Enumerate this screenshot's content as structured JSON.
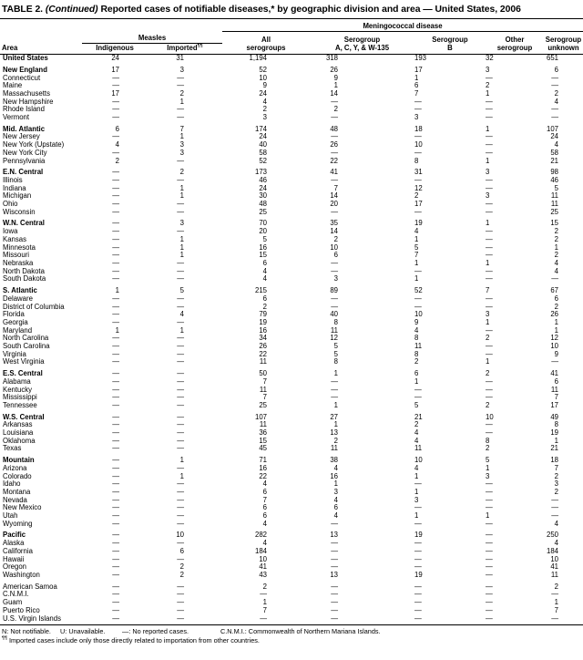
{
  "title": {
    "prefix": "TABLE 2. ",
    "continued": "(Continued)",
    "rest": " Reported cases of notifiable diseases,* by geographic division and area — United States, 2006"
  },
  "table": {
    "area_header": "Area",
    "measles_group_label": "Measles",
    "mening_group_label": "Meningococcal disease",
    "measles_columns": [
      {
        "text": "Indigenous",
        "sup": ""
      },
      {
        "text": "Imported",
        "sup": "¶¶"
      }
    ],
    "mening_columns": [
      {
        "l1": "All",
        "l2": "serogroups"
      },
      {
        "l1": "Serogroup",
        "l2": "A, C, Y, & W-135"
      },
      {
        "l1": "Serogroup",
        "l2": "B"
      },
      {
        "l1": "Other",
        "l2": "serogroup"
      },
      {
        "l1": "Serogroup",
        "l2": "unknown"
      }
    ],
    "groups": [
      {
        "rows": [
          {
            "area": "United States",
            "bold": true,
            "values": [
              "24",
              "31",
              "1,194",
              "318",
              "193",
              "32",
              "651"
            ]
          }
        ]
      },
      {
        "rows": [
          {
            "area": "New England",
            "bold": true,
            "values": [
              "17",
              "3",
              "52",
              "26",
              "17",
              "3",
              "6"
            ]
          },
          {
            "area": "Connecticut",
            "bold": false,
            "values": [
              "—",
              "—",
              "10",
              "9",
              "1",
              "—",
              "—"
            ]
          },
          {
            "area": "Maine",
            "bold": false,
            "values": [
              "—",
              "—",
              "9",
              "1",
              "6",
              "2",
              "—"
            ]
          },
          {
            "area": "Massachusetts",
            "bold": false,
            "values": [
              "17",
              "2",
              "24",
              "14",
              "7",
              "1",
              "2"
            ]
          },
          {
            "area": "New Hampshire",
            "bold": false,
            "values": [
              "—",
              "1",
              "4",
              "—",
              "—",
              "—",
              "4"
            ]
          },
          {
            "area": "Rhode Island",
            "bold": false,
            "values": [
              "—",
              "—",
              "2",
              "2",
              "—",
              "—",
              "—"
            ]
          },
          {
            "area": "Vermont",
            "bold": false,
            "values": [
              "—",
              "—",
              "3",
              "—",
              "3",
              "—",
              "—"
            ]
          }
        ]
      },
      {
        "rows": [
          {
            "area": "Mid. Atlantic",
            "bold": true,
            "values": [
              "6",
              "7",
              "174",
              "48",
              "18",
              "1",
              "107"
            ]
          },
          {
            "area": "New Jersey",
            "bold": false,
            "values": [
              "—",
              "1",
              "24",
              "—",
              "—",
              "—",
              "24"
            ]
          },
          {
            "area": "New York (Upstate)",
            "bold": false,
            "values": [
              "4",
              "3",
              "40",
              "26",
              "10",
              "—",
              "4"
            ]
          },
          {
            "area": "New York City",
            "bold": false,
            "values": [
              "—",
              "3",
              "58",
              "—",
              "—",
              "—",
              "58"
            ]
          },
          {
            "area": "Pennsylvania",
            "bold": false,
            "values": [
              "2",
              "—",
              "52",
              "22",
              "8",
              "1",
              "21"
            ]
          }
        ]
      },
      {
        "rows": [
          {
            "area": "E.N. Central",
            "bold": true,
            "values": [
              "—",
              "2",
              "173",
              "41",
              "31",
              "3",
              "98"
            ]
          },
          {
            "area": "Illinois",
            "bold": false,
            "values": [
              "—",
              "—",
              "46",
              "—",
              "—",
              "—",
              "46"
            ]
          },
          {
            "area": "Indiana",
            "bold": false,
            "values": [
              "—",
              "1",
              "24",
              "7",
              "12",
              "—",
              "5"
            ]
          },
          {
            "area": "Michigan",
            "bold": false,
            "values": [
              "—",
              "1",
              "30",
              "14",
              "2",
              "3",
              "11"
            ]
          },
          {
            "area": "Ohio",
            "bold": false,
            "values": [
              "—",
              "—",
              "48",
              "20",
              "17",
              "—",
              "11"
            ]
          },
          {
            "area": "Wisconsin",
            "bold": false,
            "values": [
              "—",
              "—",
              "25",
              "—",
              "—",
              "—",
              "25"
            ]
          }
        ]
      },
      {
        "rows": [
          {
            "area": "W.N. Central",
            "bold": true,
            "values": [
              "—",
              "3",
              "70",
              "35",
              "19",
              "1",
              "15"
            ]
          },
          {
            "area": "Iowa",
            "bold": false,
            "values": [
              "—",
              "—",
              "20",
              "14",
              "4",
              "—",
              "2"
            ]
          },
          {
            "area": "Kansas",
            "bold": false,
            "values": [
              "—",
              "1",
              "5",
              "2",
              "1",
              "—",
              "2"
            ]
          },
          {
            "area": "Minnesota",
            "bold": false,
            "values": [
              "—",
              "1",
              "16",
              "10",
              "5",
              "—",
              "1"
            ]
          },
          {
            "area": "Missouri",
            "bold": false,
            "values": [
              "—",
              "1",
              "15",
              "6",
              "7",
              "—",
              "2"
            ]
          },
          {
            "area": "Nebraska",
            "bold": false,
            "values": [
              "—",
              "—",
              "6",
              "—",
              "1",
              "1",
              "4"
            ]
          },
          {
            "area": "North Dakota",
            "bold": false,
            "values": [
              "—",
              "—",
              "4",
              "—",
              "—",
              "—",
              "4"
            ]
          },
          {
            "area": "South Dakota",
            "bold": false,
            "values": [
              "—",
              "—",
              "4",
              "3",
              "1",
              "—",
              "—"
            ]
          }
        ]
      },
      {
        "rows": [
          {
            "area": "S. Atlantic",
            "bold": true,
            "values": [
              "1",
              "5",
              "215",
              "89",
              "52",
              "7",
              "67"
            ]
          },
          {
            "area": "Delaware",
            "bold": false,
            "values": [
              "—",
              "—",
              "6",
              "—",
              "—",
              "—",
              "6"
            ]
          },
          {
            "area": "District of Columbia",
            "bold": false,
            "values": [
              "—",
              "—",
              "2",
              "—",
              "—",
              "—",
              "2"
            ]
          },
          {
            "area": "Florida",
            "bold": false,
            "values": [
              "—",
              "4",
              "79",
              "40",
              "10",
              "3",
              "26"
            ]
          },
          {
            "area": "Georgia",
            "bold": false,
            "values": [
              "—",
              "—",
              "19",
              "8",
              "9",
              "1",
              "1"
            ]
          },
          {
            "area": "Maryland",
            "bold": false,
            "values": [
              "1",
              "1",
              "16",
              "11",
              "4",
              "—",
              "1"
            ]
          },
          {
            "area": "North Carolina",
            "bold": false,
            "values": [
              "—",
              "—",
              "34",
              "12",
              "8",
              "2",
              "12"
            ]
          },
          {
            "area": "South Carolina",
            "bold": false,
            "values": [
              "—",
              "—",
              "26",
              "5",
              "11",
              "—",
              "10"
            ]
          },
          {
            "area": "Virginia",
            "bold": false,
            "values": [
              "—",
              "—",
              "22",
              "5",
              "8",
              "—",
              "9"
            ]
          },
          {
            "area": "West Virginia",
            "bold": false,
            "values": [
              "—",
              "—",
              "11",
              "8",
              "2",
              "1",
              "—"
            ]
          }
        ]
      },
      {
        "rows": [
          {
            "area": "E.S. Central",
            "bold": true,
            "values": [
              "—",
              "—",
              "50",
              "1",
              "6",
              "2",
              "41"
            ]
          },
          {
            "area": "Alabama",
            "bold": false,
            "values": [
              "—",
              "—",
              "7",
              "—",
              "1",
              "—",
              "6"
            ]
          },
          {
            "area": "Kentucky",
            "bold": false,
            "values": [
              "—",
              "—",
              "11",
              "—",
              "—",
              "—",
              "11"
            ]
          },
          {
            "area": "Mississippi",
            "bold": false,
            "values": [
              "—",
              "—",
              "7",
              "—",
              "—",
              "—",
              "7"
            ]
          },
          {
            "area": "Tennessee",
            "bold": false,
            "values": [
              "—",
              "—",
              "25",
              "1",
              "5",
              "2",
              "17"
            ]
          }
        ]
      },
      {
        "rows": [
          {
            "area": "W.S. Central",
            "bold": true,
            "values": [
              "—",
              "—",
              "107",
              "27",
              "21",
              "10",
              "49"
            ]
          },
          {
            "area": "Arkansas",
            "bold": false,
            "values": [
              "—",
              "—",
              "11",
              "1",
              "2",
              "—",
              "8"
            ]
          },
          {
            "area": "Louisiana",
            "bold": false,
            "values": [
              "—",
              "—",
              "36",
              "13",
              "4",
              "—",
              "19"
            ]
          },
          {
            "area": "Oklahoma",
            "bold": false,
            "values": [
              "—",
              "—",
              "15",
              "2",
              "4",
              "8",
              "1"
            ]
          },
          {
            "area": "Texas",
            "bold": false,
            "values": [
              "—",
              "—",
              "45",
              "11",
              "11",
              "2",
              "21"
            ]
          }
        ]
      },
      {
        "rows": [
          {
            "area": "Mountain",
            "bold": true,
            "values": [
              "—",
              "1",
              "71",
              "38",
              "10",
              "5",
              "18"
            ]
          },
          {
            "area": "Arizona",
            "bold": false,
            "values": [
              "—",
              "—",
              "16",
              "4",
              "4",
              "1",
              "7"
            ]
          },
          {
            "area": "Colorado",
            "bold": false,
            "values": [
              "—",
              "1",
              "22",
              "16",
              "1",
              "3",
              "2"
            ]
          },
          {
            "area": "Idaho",
            "bold": false,
            "values": [
              "—",
              "—",
              "4",
              "1",
              "—",
              "—",
              "3"
            ]
          },
          {
            "area": "Montana",
            "bold": false,
            "values": [
              "—",
              "—",
              "6",
              "3",
              "1",
              "—",
              "2"
            ]
          },
          {
            "area": "Nevada",
            "bold": false,
            "values": [
              "—",
              "—",
              "7",
              "4",
              "3",
              "—",
              "—"
            ]
          },
          {
            "area": "New Mexico",
            "bold": false,
            "values": [
              "—",
              "—",
              "6",
              "6",
              "—",
              "—",
              "—"
            ]
          },
          {
            "area": "Utah",
            "bold": false,
            "values": [
              "—",
              "—",
              "6",
              "4",
              "1",
              "1",
              "—"
            ]
          },
          {
            "area": "Wyoming",
            "bold": false,
            "values": [
              "—",
              "—",
              "4",
              "—",
              "—",
              "—",
              "4"
            ]
          }
        ]
      },
      {
        "rows": [
          {
            "area": "Pacific",
            "bold": true,
            "values": [
              "—",
              "10",
              "282",
              "13",
              "19",
              "—",
              "250"
            ]
          },
          {
            "area": "Alaska",
            "bold": false,
            "values": [
              "—",
              "—",
              "4",
              "—",
              "—",
              "—",
              "4"
            ]
          },
          {
            "area": "California",
            "bold": false,
            "values": [
              "—",
              "6",
              "184",
              "—",
              "—",
              "—",
              "184"
            ]
          },
          {
            "area": "Hawaii",
            "bold": false,
            "values": [
              "—",
              "—",
              "10",
              "—",
              "—",
              "—",
              "10"
            ]
          },
          {
            "area": "Oregon",
            "bold": false,
            "values": [
              "—",
              "2",
              "41",
              "—",
              "—",
              "—",
              "41"
            ]
          },
          {
            "area": "Washington",
            "bold": false,
            "values": [
              "—",
              "2",
              "43",
              "13",
              "19",
              "—",
              "11"
            ]
          }
        ]
      },
      {
        "rows": [
          {
            "area": "American Samoa",
            "bold": false,
            "values": [
              "—",
              "—",
              "2",
              "—",
              "—",
              "—",
              "2"
            ]
          },
          {
            "area": "C.N.M.I.",
            "bold": false,
            "values": [
              "—",
              "—",
              "—",
              "—",
              "—",
              "—",
              "—"
            ]
          },
          {
            "area": "Guam",
            "bold": false,
            "values": [
              "—",
              "—",
              "1",
              "—",
              "—",
              "—",
              "1"
            ]
          },
          {
            "area": "Puerto Rico",
            "bold": false,
            "values": [
              "—",
              "—",
              "7",
              "—",
              "—",
              "—",
              "7"
            ]
          },
          {
            "area": "U.S. Virgin Islands",
            "bold": false,
            "values": [
              "—",
              "—",
              "—",
              "—",
              "—",
              "—",
              "—"
            ]
          }
        ]
      }
    ]
  },
  "footnotes": {
    "legend": [
      "N: Not notifiable.",
      "U: Unavailable.",
      "—: No reported cases.",
      "C.N.M.I.: Commonwealth of Northern Mariana Islands."
    ],
    "imported_marker": "¶¶",
    "imported_text": " Imported cases include only those directly related to importation from other countries."
  }
}
